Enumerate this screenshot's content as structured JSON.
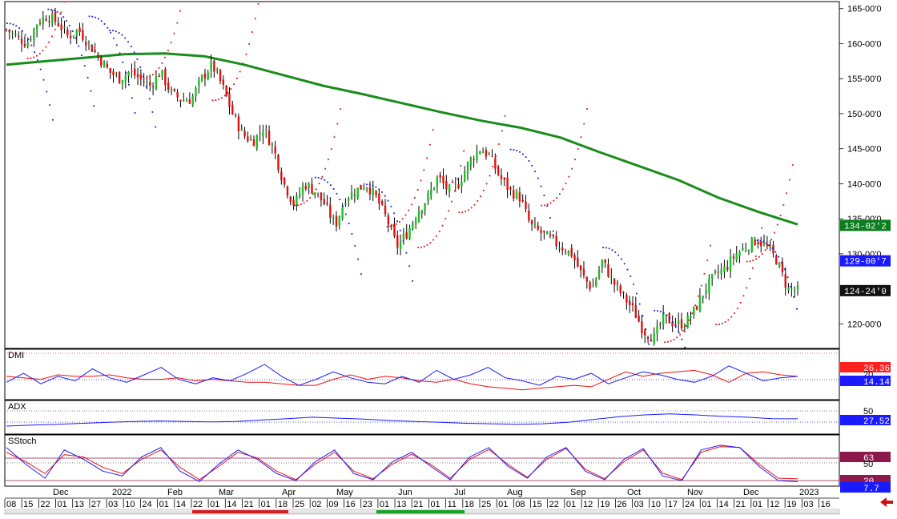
{
  "chart_data": {
    "type": "ohlc",
    "symbol_panel": {
      "y_ticks": [
        "165-00'0",
        "160-00'0",
        "155-00'0",
        "150-00'0",
        "145-00'0",
        "140-00'0",
        "135-00'0",
        "130-00'0",
        "120-00'0"
      ],
      "y_tick_values": [
        165,
        160,
        155,
        150,
        145,
        140,
        135,
        130,
        120
      ],
      "ylim": [
        116.5,
        166
      ],
      "price_series": [
        162,
        161,
        160,
        163,
        164,
        163,
        161,
        162,
        160,
        158,
        156,
        155,
        156,
        155,
        154,
        156,
        153,
        152,
        152,
        155,
        157,
        154,
        150,
        147,
        146,
        148,
        145,
        140,
        137,
        140,
        139,
        137,
        134,
        138,
        139,
        140,
        138,
        135,
        131,
        133,
        136,
        138,
        141,
        139,
        140,
        143,
        145,
        144,
        141,
        139,
        138,
        134,
        133,
        132,
        131,
        130,
        127,
        125,
        129,
        126,
        124,
        122,
        119,
        118,
        121,
        120,
        120,
        122,
        125,
        127,
        128,
        130,
        131,
        132,
        131,
        129,
        125,
        124.75
      ],
      "psar_above": [
        [
          0,
          163
        ],
        [
          4,
          165
        ],
        [
          8,
          164
        ],
        [
          10,
          162
        ],
        [
          30,
          141
        ],
        [
          35,
          140
        ],
        [
          49,
          145
        ],
        [
          58,
          131
        ],
        [
          63,
          122
        ],
        [
          73,
          132
        ]
      ],
      "psar_below": [
        [
          2,
          158
        ],
        [
          13,
          155
        ],
        [
          20,
          152
        ],
        [
          28,
          137
        ],
        [
          37,
          134
        ],
        [
          40,
          131
        ],
        [
          44,
          136
        ],
        [
          52,
          137
        ],
        [
          64,
          117.5
        ],
        [
          69,
          120
        ],
        [
          72,
          129
        ]
      ],
      "ma": [
        157,
        157.5,
        158,
        158.5,
        158.6,
        158.2,
        157,
        155.5,
        154,
        152.8,
        151.5,
        150.2,
        149,
        148,
        146.6,
        144.5,
        142.5,
        140.5,
        138,
        136,
        134.2
      ],
      "tags": [
        {
          "value": "134-02'2",
          "color": "#0a7d1c"
        },
        {
          "value": "129-00'7",
          "color": "#1a1aff"
        },
        {
          "value": "124-24'0",
          "color": "#111111"
        }
      ]
    },
    "dmi_panel": {
      "name": "DMI",
      "plus_di": [
        10,
        16,
        9,
        14,
        11,
        19,
        13,
        10,
        15,
        20,
        12,
        9,
        13,
        11,
        16,
        22,
        14,
        8,
        12,
        17,
        13,
        10,
        9,
        14,
        10,
        18,
        12,
        15,
        20,
        13,
        11,
        8,
        14,
        12,
        16,
        9,
        13,
        17,
        15,
        12,
        10,
        14,
        21,
        16,
        11,
        13,
        14
      ],
      "minus_di": [
        14,
        13,
        12,
        15,
        14,
        14,
        15,
        13,
        12,
        12,
        13,
        11,
        12,
        11,
        10,
        10,
        9,
        8,
        8,
        12,
        15,
        12,
        14,
        13,
        11,
        10,
        12,
        9,
        7,
        6,
        5,
        6,
        7,
        8,
        7,
        12,
        17,
        14,
        16,
        17,
        18,
        15,
        10,
        16,
        17,
        15,
        14
      ],
      "right_labels": [
        "26.36",
        "20",
        "14.14"
      ],
      "right_colors": [
        "#ff2020",
        "#000000",
        "#1a1aff"
      ]
    },
    "adx_panel": {
      "name": "ADX",
      "adx": [
        12,
        14,
        16,
        18,
        20,
        22,
        23,
        22,
        21,
        22,
        25,
        28,
        31,
        29,
        27,
        24,
        22,
        20,
        18,
        17,
        16,
        17,
        20,
        26,
        32,
        36,
        38,
        36,
        33,
        31,
        28,
        27.52
      ],
      "right_labels": [
        "50",
        "27.52"
      ],
      "right_colors": [
        "#000000",
        "#1a1aff"
      ]
    },
    "stoch_panel": {
      "name": "SStoch",
      "k": [
        80,
        45,
        15,
        75,
        55,
        30,
        20,
        60,
        80,
        30,
        8,
        45,
        75,
        55,
        25,
        10,
        50,
        75,
        25,
        12,
        50,
        70,
        40,
        12,
        60,
        80,
        40,
        15,
        60,
        80,
        30,
        12,
        55,
        78,
        20,
        10,
        75,
        85,
        80,
        40,
        10,
        7.7
      ],
      "d": [
        70,
        50,
        25,
        65,
        60,
        38,
        25,
        55,
        75,
        38,
        12,
        40,
        70,
        58,
        30,
        12,
        45,
        70,
        30,
        14,
        45,
        66,
        44,
        15,
        55,
        76,
        44,
        17,
        55,
        78,
        34,
        14,
        50,
        75,
        26,
        12,
        70,
        82,
        80,
        45,
        15,
        14
      ],
      "right_labels": [
        "63",
        "50",
        "20",
        "7.7"
      ],
      "right_colors": [
        "#8b1a4a",
        "#000000",
        "#8b1a4a",
        "#1a1aff"
      ]
    },
    "date_axis": {
      "days": [
        "08",
        "15",
        "22",
        "01",
        "13",
        "27",
        "03",
        "10",
        "24",
        "01",
        "14",
        "22",
        "01",
        "14",
        "21",
        "01",
        "18",
        "25",
        "02",
        "09",
        "16",
        "23",
        "01",
        "13",
        "21",
        "01",
        "11",
        "18",
        "25",
        "01",
        "08",
        "15",
        "22",
        "01",
        "12",
        "19",
        "26",
        "03",
        "10",
        "17",
        "24",
        "01",
        "14",
        "21",
        "01",
        "12",
        "19",
        "03",
        "16"
      ],
      "months": [
        "Dec",
        "2022",
        "Feb",
        "Mar",
        "Apr",
        "May",
        "Jun",
        "Jul",
        "Aug",
        "Sep",
        "Oct",
        "Nov",
        "Dec",
        "2023"
      ]
    }
  }
}
